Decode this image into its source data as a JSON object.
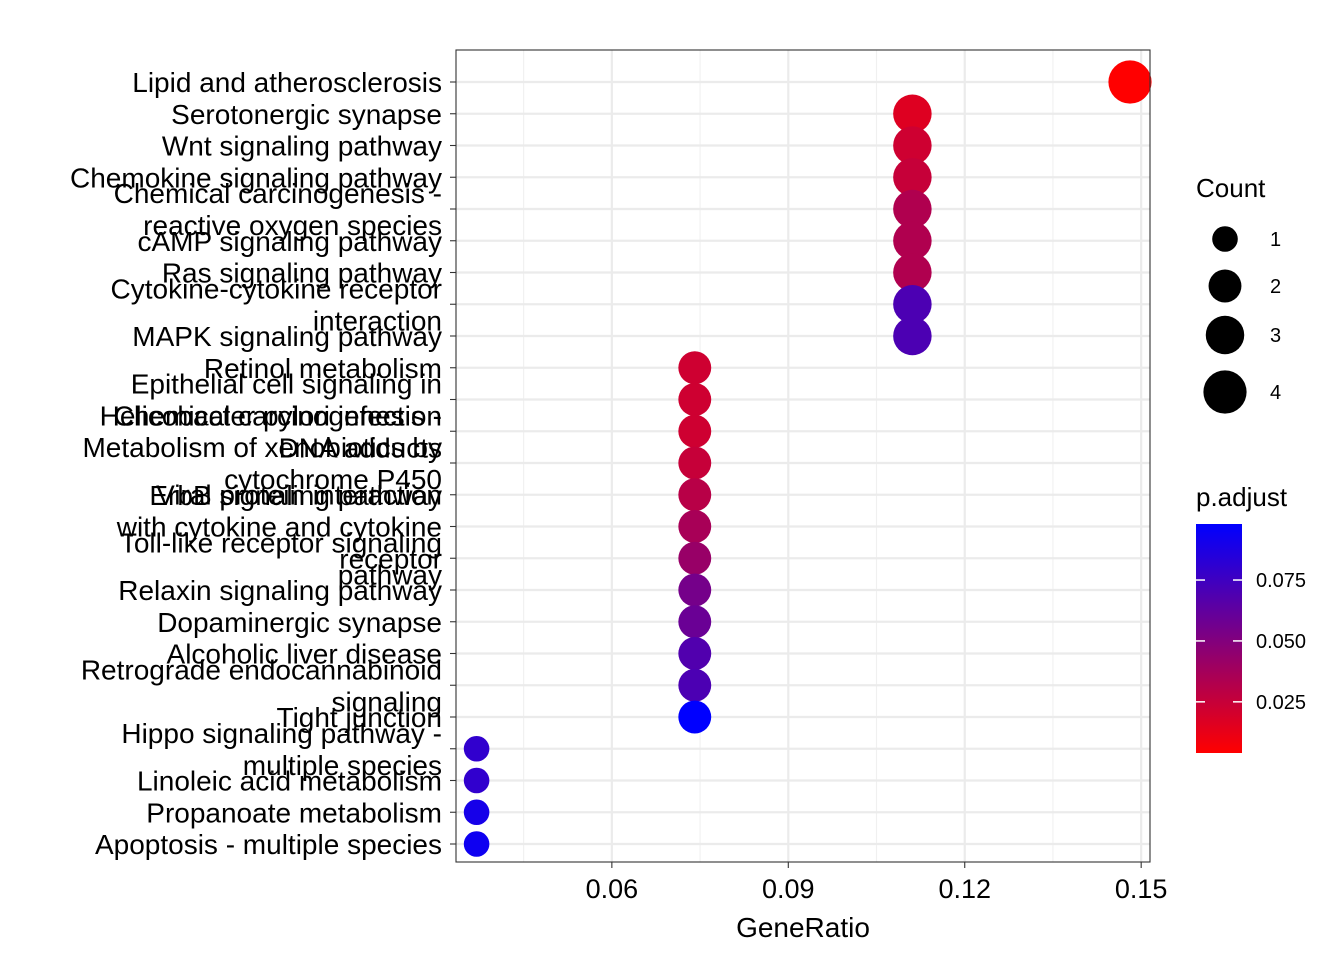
{
  "chart_data": {
    "type": "scatter",
    "xlabel": "GeneRatio",
    "xlim": [
      0.0335,
      0.1515
    ],
    "x_ticks": [
      {
        "value": 0.06,
        "label": "0.06"
      },
      {
        "value": 0.09,
        "label": "0.09"
      },
      {
        "value": 0.12,
        "label": "0.12"
      },
      {
        "value": 0.15,
        "label": "0.15"
      }
    ],
    "x_minor": [
      0.045,
      0.075,
      0.105,
      0.135
    ],
    "grid": true,
    "points": [
      {
        "term": [
          "Lipid and atherosclerosis"
        ],
        "gene_ratio": 0.1481,
        "count": 4,
        "p_adjust": 0.004
      },
      {
        "term": [
          "Serotonergic synapse"
        ],
        "gene_ratio": 0.1111,
        "count": 3,
        "p_adjust": 0.016
      },
      {
        "term": [
          "Wnt signaling pathway"
        ],
        "gene_ratio": 0.1111,
        "count": 3,
        "p_adjust": 0.022
      },
      {
        "term": [
          "Chemokine signaling pathway"
        ],
        "gene_ratio": 0.1111,
        "count": 3,
        "p_adjust": 0.025
      },
      {
        "term": [
          "Chemical carcinogenesis -",
          "reactive oxygen species"
        ],
        "gene_ratio": 0.1111,
        "count": 3,
        "p_adjust": 0.033
      },
      {
        "term": [
          "cAMP signaling pathway"
        ],
        "gene_ratio": 0.1111,
        "count": 3,
        "p_adjust": 0.033
      },
      {
        "term": [
          "Ras signaling pathway"
        ],
        "gene_ratio": 0.1111,
        "count": 3,
        "p_adjust": 0.033
      },
      {
        "term": [
          "Cytokine-cytokine receptor",
          "interaction"
        ],
        "gene_ratio": 0.1111,
        "count": 3,
        "p_adjust": 0.07
      },
      {
        "term": [
          "MAPK signaling pathway"
        ],
        "gene_ratio": 0.1111,
        "count": 3,
        "p_adjust": 0.07
      },
      {
        "term": [
          "Retinol metabolism"
        ],
        "gene_ratio": 0.0741,
        "count": 2,
        "p_adjust": 0.022
      },
      {
        "term": [
          "Epithelial cell signaling in",
          "Helicobacter pylori infection"
        ],
        "gene_ratio": 0.0741,
        "count": 2,
        "p_adjust": 0.022
      },
      {
        "term": [
          "Chemical carcinogenesis -",
          "DNA adducts"
        ],
        "gene_ratio": 0.0741,
        "count": 2,
        "p_adjust": 0.022
      },
      {
        "term": [
          "Metabolism of xenobiotics by",
          "cytochrome P450"
        ],
        "gene_ratio": 0.0741,
        "count": 2,
        "p_adjust": 0.025
      },
      {
        "term": [
          "ErbB signaling pathway"
        ],
        "gene_ratio": 0.0741,
        "count": 2,
        "p_adjust": 0.03
      },
      {
        "term": [
          "Viral protein interaction",
          "with cytokine and cytokine",
          "receptor"
        ],
        "gene_ratio": 0.0741,
        "count": 2,
        "p_adjust": 0.036
      },
      {
        "term": [
          "Toll-like receptor signaling",
          "pathway"
        ],
        "gene_ratio": 0.0741,
        "count": 2,
        "p_adjust": 0.042
      },
      {
        "term": [
          "Relaxin signaling pathway"
        ],
        "gene_ratio": 0.0741,
        "count": 2,
        "p_adjust": 0.055
      },
      {
        "term": [
          "Dopaminergic synapse"
        ],
        "gene_ratio": 0.0741,
        "count": 2,
        "p_adjust": 0.059
      },
      {
        "term": [
          "Alcoholic liver disease"
        ],
        "gene_ratio": 0.0741,
        "count": 2,
        "p_adjust": 0.068
      },
      {
        "term": [
          "Retrograde endocannabinoid",
          "signaling"
        ],
        "gene_ratio": 0.0741,
        "count": 2,
        "p_adjust": 0.07
      },
      {
        "term": [
          "Tight junction"
        ],
        "gene_ratio": 0.0741,
        "count": 2,
        "p_adjust": 0.098
      },
      {
        "term": [
          "Hippo signaling pathway -",
          "multiple species"
        ],
        "gene_ratio": 0.037,
        "count": 1,
        "p_adjust": 0.08
      },
      {
        "term": [
          "Linoleic acid metabolism"
        ],
        "gene_ratio": 0.037,
        "count": 1,
        "p_adjust": 0.08
      },
      {
        "term": [
          "Propanoate metabolism"
        ],
        "gene_ratio": 0.037,
        "count": 1,
        "p_adjust": 0.09
      },
      {
        "term": [
          "Apoptosis - multiple species"
        ],
        "gene_ratio": 0.037,
        "count": 1,
        "p_adjust": 0.093
      }
    ],
    "size_legend": {
      "title": "Count",
      "entries": [
        {
          "count": 1,
          "label": "1"
        },
        {
          "count": 2,
          "label": "2"
        },
        {
          "count": 3,
          "label": "3"
        },
        {
          "count": 4,
          "label": "4"
        }
      ]
    },
    "color_legend": {
      "title": "p.adjust",
      "range": [
        0.004,
        0.098
      ],
      "low_color": "#ff0000",
      "high_color": "#0000ff",
      "ticks": [
        {
          "value": 0.025,
          "label": "0.025"
        },
        {
          "value": 0.05,
          "label": "0.050"
        },
        {
          "value": 0.075,
          "label": "0.075"
        }
      ]
    }
  }
}
